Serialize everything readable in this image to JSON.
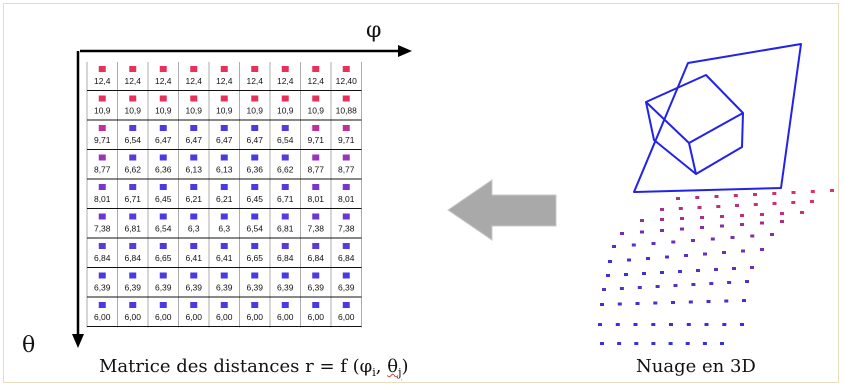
{
  "axes": {
    "phi": "φ",
    "theta": "θ"
  },
  "matrix": {
    "rows": [
      [
        "12,4",
        "12,4",
        "12,4",
        "12,4",
        "12,4",
        "12,4",
        "12,4",
        "12,4",
        "12,40"
      ],
      [
        "10,9",
        "10,9",
        "10,9",
        "10,9",
        "10,9",
        "10,9",
        "10,9",
        "10,9",
        "10,88"
      ],
      [
        "9,71",
        "6,54",
        "6,47",
        "6,47",
        "6,47",
        "6,47",
        "6,54",
        "9,71",
        "9,71"
      ],
      [
        "8,77",
        "6,62",
        "6,36",
        "6,13",
        "6,13",
        "6,36",
        "6,62",
        "8,77",
        "8,77"
      ],
      [
        "8,01",
        "6,71",
        "6,45",
        "6,21",
        "6,21",
        "6,45",
        "6,71",
        "8,01",
        "8,01"
      ],
      [
        "7,38",
        "6,81",
        "6,54",
        "6,3",
        "6,3",
        "6,54",
        "6,81",
        "7,38",
        "7,38"
      ],
      [
        "6,84",
        "6,84",
        "6,65",
        "6,41",
        "6,41",
        "6,65",
        "6,84",
        "6,84",
        "6,84"
      ],
      [
        "6,39",
        "6,39",
        "6,39",
        "6,39",
        "6,39",
        "6,39",
        "6,39",
        "6,39",
        "6,39"
      ],
      [
        "6,00",
        "6,00",
        "6,00",
        "6,00",
        "6,00",
        "6,00",
        "6,00",
        "6,00",
        "6,00"
      ]
    ],
    "marker_colors": [
      [
        "#e8305a",
        "#e8305a",
        "#e8305a",
        "#e8305a",
        "#e8305a",
        "#e8305a",
        "#e8305a",
        "#e8305a",
        "#e8305a"
      ],
      [
        "#e8305a",
        "#e8305a",
        "#e8305a",
        "#e8305a",
        "#e8305a",
        "#e8305a",
        "#e8305a",
        "#e8305a",
        "#e8305a"
      ],
      [
        "#c0309a",
        "#5a3ad8",
        "#4a3ae0",
        "#4a3ae0",
        "#4a3ae0",
        "#4a3ae0",
        "#5a3ad8",
        "#c0309a",
        "#c0309a"
      ],
      [
        "#9a34b8",
        "#5a3ad8",
        "#4a3ae0",
        "#4a3ae0",
        "#4a3ae0",
        "#4a3ae0",
        "#5a3ad8",
        "#9a34b8",
        "#9a34b8"
      ],
      [
        "#7a36c8",
        "#5a3ad8",
        "#4a3ae0",
        "#4a3ae0",
        "#4a3ae0",
        "#4a3ae0",
        "#5a3ad8",
        "#7a36c8",
        "#7a36c8"
      ],
      [
        "#6a38d0",
        "#5a3ad8",
        "#4a3ae0",
        "#4a3ae0",
        "#4a3ae0",
        "#4a3ae0",
        "#5a3ad8",
        "#6a38d0",
        "#6a38d0"
      ],
      [
        "#5a3ad8",
        "#5a3ad8",
        "#4a3ae0",
        "#4a3ae0",
        "#4a3ae0",
        "#4a3ae0",
        "#5a3ad8",
        "#5a3ad8",
        "#5a3ad8"
      ],
      [
        "#4a3ae0",
        "#4a3ae0",
        "#4a3ae0",
        "#4a3ae0",
        "#4a3ae0",
        "#4a3ae0",
        "#4a3ae0",
        "#4a3ae0",
        "#4a3ae0"
      ],
      [
        "#4a3ae0",
        "#4a3ae0",
        "#4a3ae0",
        "#4a3ae0",
        "#4a3ae0",
        "#4a3ae0",
        "#4a3ae0",
        "#4a3ae0",
        "#4a3ae0"
      ]
    ]
  },
  "captions": {
    "left_prefix": "Matrice des distances  r = f (",
    "phi": "φ",
    "sub_i": "i",
    "comma": ", ",
    "theta": "θ",
    "sub_j": "j",
    "close": ")",
    "right": "Nuage en 3D"
  },
  "colors": {
    "arrow": "#a8a8a8",
    "wire": "#2020e0",
    "red": "#e8305a",
    "blue": "#3a30d8"
  }
}
